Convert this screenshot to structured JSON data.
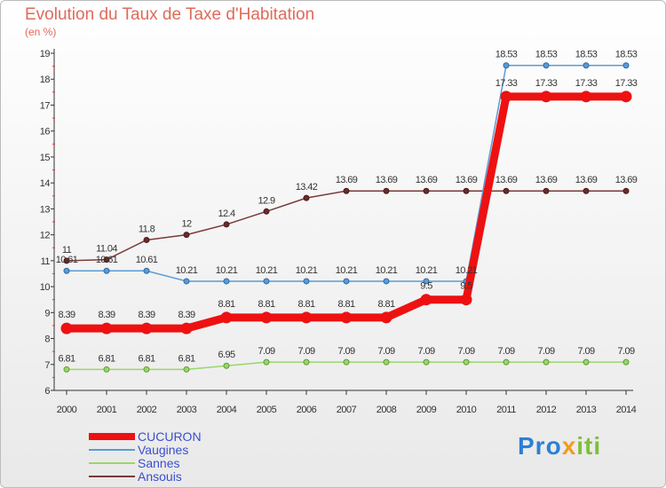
{
  "title": "Evolution du Taux de Taxe d'Habitation",
  "subtitle": "(en %)",
  "logo": {
    "p1": "Pro",
    "p2": "x",
    "p3": "iti"
  },
  "chart_data": {
    "type": "line",
    "title": "Evolution du Taux de Taxe d'Habitation",
    "ylabel": "(en %)",
    "xlabel": "",
    "x": [
      2000,
      2001,
      2002,
      2003,
      2004,
      2005,
      2006,
      2007,
      2008,
      2009,
      2010,
      2011,
      2012,
      2013,
      2014
    ],
    "ylim": [
      6,
      19
    ],
    "yticks": [
      6,
      7,
      8,
      9,
      10,
      11,
      12,
      13,
      14,
      15,
      16,
      17,
      18,
      19
    ],
    "grid": false,
    "legend": "bottom-left",
    "series": [
      {
        "name": "Sannes",
        "color": "#99d66a",
        "values": [
          6.81,
          6.81,
          6.81,
          6.81,
          6.95,
          7.09,
          7.09,
          7.09,
          7.09,
          7.09,
          7.09,
          7.09,
          7.09,
          7.09,
          7.09
        ]
      },
      {
        "name": "Ansouis",
        "color": "#7a3a3a",
        "values": [
          11,
          11.04,
          11.8,
          12,
          12.4,
          12.9,
          13.42,
          13.69,
          13.69,
          13.69,
          13.69,
          13.69,
          13.69,
          13.69,
          13.69
        ]
      },
      {
        "name": "Vaugines",
        "color": "#5b9bd5",
        "values": [
          10.61,
          10.61,
          10.61,
          10.21,
          10.21,
          10.21,
          10.21,
          10.21,
          10.21,
          10.21,
          10.21,
          18.53,
          18.53,
          18.53,
          18.53
        ]
      },
      {
        "name": "CUCURON",
        "color": "#ee1111",
        "values": [
          8.39,
          8.39,
          8.39,
          8.39,
          8.81,
          8.81,
          8.81,
          8.81,
          8.81,
          9.5,
          9.5,
          17.33,
          17.33,
          17.33,
          17.33
        ]
      }
    ]
  }
}
